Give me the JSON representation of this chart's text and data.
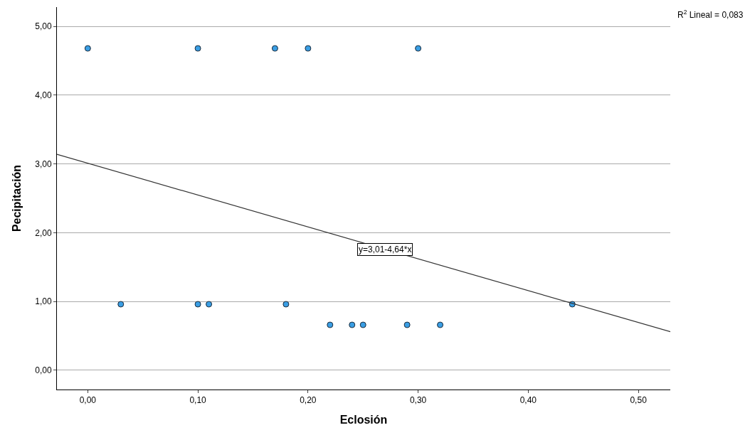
{
  "chart_data": {
    "type": "scatter",
    "xlabel": "Eclosión",
    "ylabel": "Pecipitación",
    "series": [
      {
        "marker": "circle",
        "color": "#3a9ee4",
        "x": [
          0.0,
          0.1,
          0.17,
          0.2,
          0.3,
          0.03,
          0.1,
          0.11,
          0.18,
          0.44,
          0.22,
          0.24,
          0.25,
          0.29,
          0.32
        ],
        "values": [
          4.68,
          4.68,
          4.68,
          4.68,
          4.68,
          0.96,
          0.96,
          0.96,
          0.96,
          0.96,
          0.66,
          0.66,
          0.66,
          0.66,
          0.66
        ]
      },
      {
        "type": "line",
        "color": "#333333",
        "x": [
          -0.028,
          0.529
        ],
        "values": [
          3.14,
          0.56
        ]
      }
    ],
    "xlim": [
      -0.028,
      0.529
    ],
    "ylim": [
      -0.28,
      5.28
    ],
    "xticks": [
      {
        "value": 0,
        "label": "0,00"
      },
      {
        "value": 0.1,
        "label": "0,10"
      },
      {
        "value": 0.2,
        "label": "0,20"
      },
      {
        "value": 0.3,
        "label": "0,30"
      },
      {
        "value": 0.4,
        "label": "0,40"
      },
      {
        "value": 0.5,
        "label": "0,50"
      }
    ],
    "yticks": [
      {
        "value": 0,
        "label": "0,00"
      },
      {
        "value": 1,
        "label": "1,00"
      },
      {
        "value": 2,
        "label": "2,00"
      },
      {
        "value": 3,
        "label": "3,00"
      },
      {
        "value": 4,
        "label": "4,00"
      },
      {
        "value": 5,
        "label": "5,00"
      }
    ],
    "annotations": [
      {
        "text": "y=3,01-4,64*x",
        "x": 0.27,
        "y": 1.76
      },
      "R$^{2}$ Lineal = 0,083"
    ],
    "grid": "y"
  }
}
